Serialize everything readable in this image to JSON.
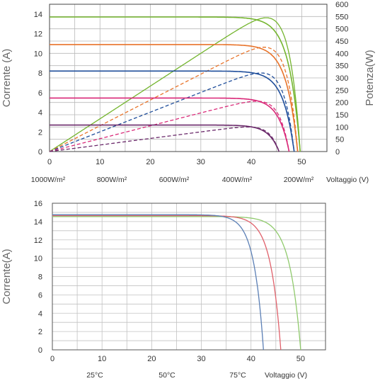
{
  "chart_data": [
    {
      "type": "line",
      "ylabel": "Corrente (A)",
      "y2label": "Potenza(W)",
      "xlabel": "",
      "xlim": [
        0,
        55
      ],
      "ylim": [
        0,
        15
      ],
      "y2lim": [
        0,
        600
      ],
      "xticks": [
        0,
        10,
        20,
        30,
        40,
        50
      ],
      "yticks": [
        0,
        2,
        4,
        6,
        8,
        10,
        12,
        14
      ],
      "y2ticks": [
        0,
        50,
        100,
        150,
        200,
        250,
        300,
        350,
        400,
        450,
        500,
        550,
        600
      ],
      "grid": true,
      "legend": [
        "1000W/m²",
        "800W/m²",
        "600W/m²",
        "400W/m²",
        "200W/m²"
      ],
      "legend_axis_label": "Voltaggio (V)",
      "series": [
        {
          "name": "1000W/m²",
          "color": "#74b52e",
          "isc": 13.7,
          "voc": 49.7,
          "pmax_w": 545,
          "vmp": 42.5
        },
        {
          "name": "800W/m²",
          "color": "#e8732a",
          "isc": 10.9,
          "voc": 49.2,
          "pmax_w": 425,
          "vmp": 41.5
        },
        {
          "name": "600W/m²",
          "color": "#1f4e9b",
          "isc": 8.2,
          "voc": 48.5,
          "pmax_w": 320,
          "vmp": 40.5
        },
        {
          "name": "400W/m²",
          "color": "#d92777",
          "isc": 5.45,
          "voc": 47.5,
          "pmax_w": 205,
          "vmp": 39.5
        },
        {
          "name": "200W/m²",
          "color": "#6b2a6b",
          "isc": 2.7,
          "voc": 45.5,
          "pmax_w": 100,
          "vmp": 38.5
        }
      ]
    },
    {
      "type": "line",
      "ylabel": "Corrente(A)",
      "xlabel": "",
      "xlim": [
        0,
        55
      ],
      "ylim": [
        0,
        16
      ],
      "xticks": [
        0,
        10,
        20,
        30,
        40,
        50
      ],
      "yticks": [
        0,
        2,
        4,
        6,
        8,
        10,
        12,
        14,
        16
      ],
      "grid": true,
      "legend": [
        "25°C",
        "50°C",
        "75°C"
      ],
      "legend_axis_label": "Voltaggio (V)",
      "series": [
        {
          "name": "25°C",
          "color": "#8fca6c",
          "isc": 14.55,
          "voc": 50.0
        },
        {
          "name": "50°C",
          "color": "#e0616b",
          "isc": 14.65,
          "voc": 46.0
        },
        {
          "name": "75°C",
          "color": "#5b7fb5",
          "isc": 14.75,
          "voc": 42.5
        }
      ]
    }
  ]
}
